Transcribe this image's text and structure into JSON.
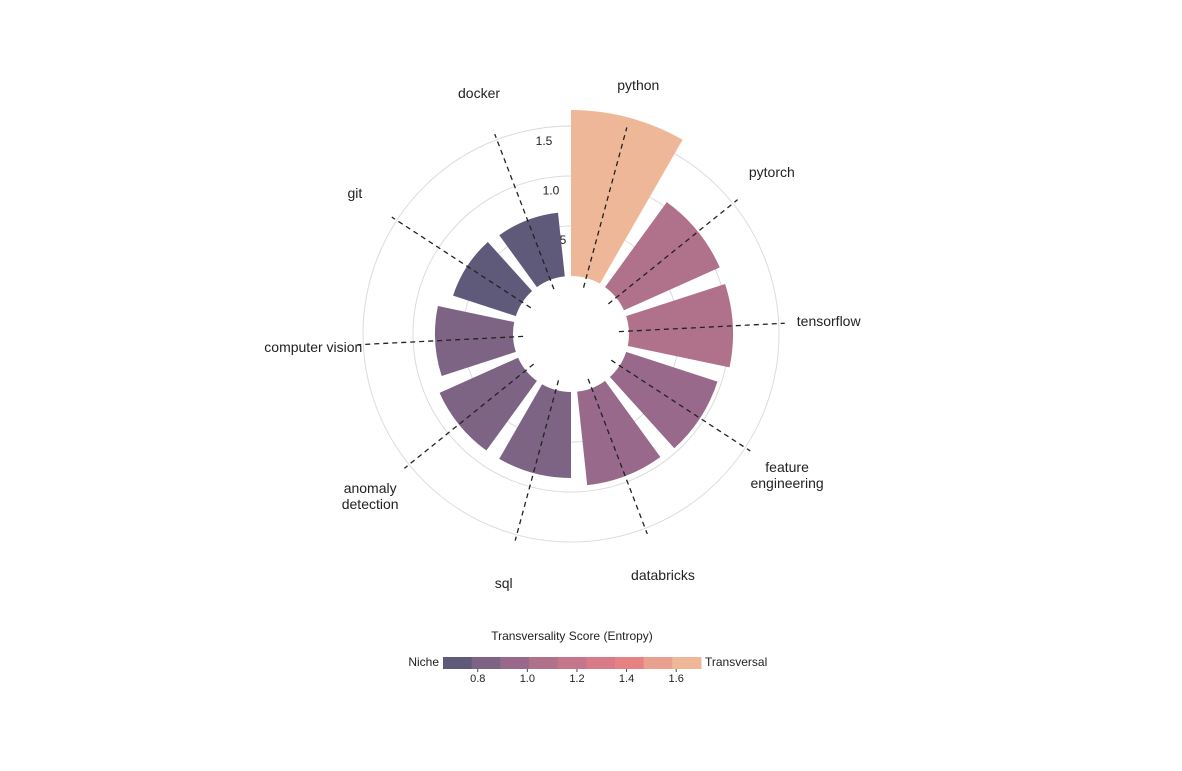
{
  "chart_data": {
    "type": "radial-bar",
    "categories": [
      "python",
      "pytorch",
      "tensorflow",
      "feature engineering",
      "databricks",
      "sql",
      "anomaly detection",
      "computer vision",
      "git",
      "docker"
    ],
    "values": [
      1.66,
      1.05,
      1.04,
      0.96,
      0.94,
      0.86,
      0.86,
      0.78,
      0.66,
      0.64
    ],
    "rlim": [
      0,
      1.5
    ],
    "rticks": [
      0.5,
      {
        "value": 1,
        "label": "1.0"
      },
      1.5
    ],
    "grid": true,
    "colorbar": {
      "title": "Transversality Score (Entropy)",
      "low_label": "Niche",
      "high_label": "Transversal",
      "lim": [
        0.66,
        1.7
      ],
      "ticks": [
        0.8,
        {
          "value": 1,
          "label": "1.0"
        },
        1.2,
        1.4,
        1.6
      ],
      "colors": [
        "#605a7a",
        "#7d6485",
        "#98698a",
        "#b0718b",
        "#c5768b",
        "#d97a88",
        "#e68283",
        "#eaa08e",
        "#eeb898"
      ]
    }
  }
}
